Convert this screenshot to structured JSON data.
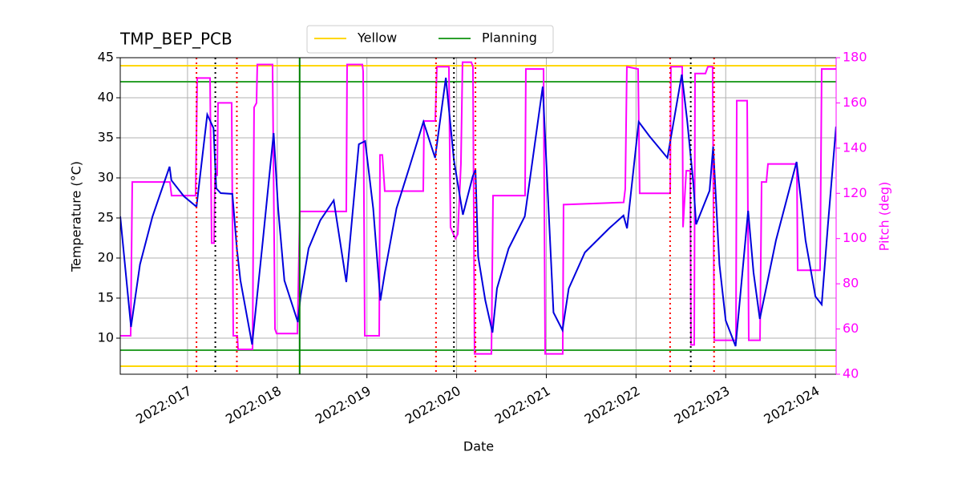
{
  "chart_data": {
    "type": "line",
    "title": "TMP_BEP_PCB",
    "x_label": "Date",
    "y_label": "Temperature (°C)",
    "y2_label": "Pitch (deg)",
    "xlim": [
      16.25,
      24.231
    ],
    "xticks": [
      {
        "value": 17,
        "label": "2022:017"
      },
      {
        "value": 18,
        "label": "2022:018"
      },
      {
        "value": 19,
        "label": "2022:019"
      },
      {
        "value": 20,
        "label": "2022:020"
      },
      {
        "value": 21,
        "label": "2022:021"
      },
      {
        "value": 22,
        "label": "2022:022"
      },
      {
        "value": 23,
        "label": "2022:023"
      },
      {
        "value": 24,
        "label": "2022:024"
      }
    ],
    "ylim": [
      5.5,
      45
    ],
    "yticks": [
      10,
      15,
      20,
      25,
      30,
      35,
      40,
      45
    ],
    "y2lim": [
      40,
      180
    ],
    "y2ticks": [
      40,
      60,
      80,
      100,
      120,
      140,
      160,
      180
    ],
    "y2_color": "#ff00ff",
    "grid": true,
    "series": [
      {
        "color": "#ff00ff",
        "axis": "y2",
        "x": [
          16.25,
          16.366,
          16.384,
          16.804,
          16.822,
          17.09,
          17.108,
          17.251,
          17.269,
          17.296,
          17.305,
          17.331,
          17.34,
          17.492,
          17.51,
          17.555,
          17.564,
          17.725,
          17.742,
          17.769,
          17.778,
          17.948,
          17.975,
          17.993,
          18.225,
          18.252,
          18.77,
          18.779,
          18.949,
          18.958,
          18.976,
          19.137,
          19.146,
          19.172,
          19.199,
          19.628,
          19.637,
          19.762,
          19.78,
          19.914,
          19.932,
          19.986,
          20.013,
          20.048,
          20.066,
          20.164,
          20.182,
          20.2,
          20.388,
          20.406,
          20.763,
          20.772,
          20.969,
          20.987,
          21.183,
          21.192,
          21.862,
          21.88,
          21.898,
          22.023,
          22.041,
          22.381,
          22.389,
          22.515,
          22.524,
          22.56,
          22.604,
          22.613,
          22.649,
          22.658,
          22.774,
          22.801,
          22.854,
          22.872,
          23.114,
          23.123,
          23.239,
          23.257,
          23.382,
          23.4,
          23.453,
          23.471,
          23.793,
          23.802,
          24.052,
          24.07,
          24.231
        ],
        "values": [
          57,
          57,
          125,
          125,
          119,
          119,
          171,
          171,
          98,
          98,
          128,
          128,
          160,
          160,
          57,
          57,
          51,
          51,
          158,
          160,
          177,
          177,
          60,
          58,
          58,
          112,
          112,
          177,
          177,
          174,
          57,
          57,
          137,
          137,
          121,
          121,
          152,
          152,
          176,
          176,
          105,
          100,
          102,
          133,
          178,
          178,
          176,
          49,
          49,
          119,
          119,
          175,
          175,
          49,
          49,
          115,
          116,
          122,
          176,
          175,
          120,
          120,
          176,
          176,
          105,
          130,
          130,
          53,
          53,
          173,
          173,
          176,
          176,
          55,
          55,
          161,
          161,
          55,
          55,
          125,
          125,
          133,
          133,
          86,
          86,
          175,
          175
        ]
      },
      {
        "color": "#0000dd",
        "axis": "y",
        "x": [
          16.25,
          16.37,
          16.47,
          16.61,
          16.8,
          16.82,
          16.96,
          17.1,
          17.22,
          17.29,
          17.32,
          17.37,
          17.5,
          17.55,
          17.59,
          17.72,
          17.84,
          17.96,
          18.01,
          18.08,
          18.23,
          18.26,
          18.35,
          18.48,
          18.63,
          18.77,
          18.91,
          18.98,
          19.07,
          19.15,
          19.2,
          19.33,
          19.47,
          19.63,
          19.76,
          19.88,
          19.97,
          20.07,
          20.18,
          20.21,
          20.24,
          20.32,
          20.4,
          20.45,
          20.58,
          20.76,
          20.96,
          21.08,
          21.18,
          21.25,
          21.43,
          21.7,
          21.86,
          21.9,
          22.03,
          22.15,
          22.35,
          22.51,
          22.57,
          22.64,
          22.67,
          22.82,
          22.86,
          22.93,
          23.0,
          23.11,
          23.25,
          23.31,
          23.38,
          23.45,
          23.56,
          23.79,
          23.89,
          24.0,
          24.07,
          24.14,
          24.23
        ],
        "values": [
          25.2,
          11.4,
          19.2,
          25.2,
          31.4,
          29.7,
          27.7,
          26.4,
          37.9,
          36.2,
          28.7,
          28.1,
          28,
          21.2,
          17.2,
          9.2,
          22.2,
          35.6,
          26.2,
          17.2,
          12,
          15.2,
          21.2,
          24.7,
          27.2,
          17,
          34.2,
          34.6,
          26.2,
          14.7,
          18.2,
          26.2,
          31.2,
          37,
          32.5,
          42.5,
          32.2,
          25.4,
          30.2,
          31,
          20.2,
          14.7,
          10.7,
          16.2,
          21.2,
          25.2,
          41.4,
          13.2,
          11,
          16.2,
          20.7,
          23.7,
          25.3,
          23.7,
          37,
          35.2,
          32.5,
          42.9,
          37.2,
          29.2,
          24.2,
          28.4,
          33.9,
          19.2,
          12.2,
          9,
          25.9,
          18.2,
          12.4,
          16.2,
          22.2,
          32,
          22.2,
          15.2,
          14.2,
          24.2,
          36.4
        ]
      }
    ],
    "limit_lines": [
      {
        "name": "Yellow",
        "color": "#ffd700",
        "values": [
          44,
          6.5
        ]
      },
      {
        "name": "Planning",
        "color": "#2ca02c",
        "values": [
          42,
          8.5
        ]
      }
    ],
    "vlines": [
      {
        "color": "#ff0000",
        "style": "dotted",
        "x": [
          17.1,
          17.55,
          19.77,
          20.21,
          22.38,
          22.87
        ]
      },
      {
        "color": "#000000",
        "style": "dotted",
        "x": [
          17.31,
          19.97,
          22.61
        ]
      },
      {
        "color": "#008000",
        "style": "solid",
        "x": [
          18.25
        ]
      }
    ]
  }
}
